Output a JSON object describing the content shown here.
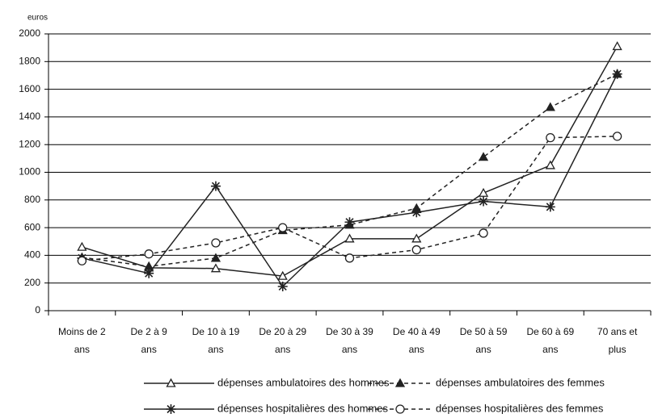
{
  "chart_data": {
    "type": "line",
    "y_label": "euros",
    "categories": [
      "Moins de 2\nans",
      "De 2 à 9\nans",
      "De 10 à 19\nans",
      "De 20 à 29\nans",
      "De 30 à 39\nans",
      "De 40 à 49\nans",
      "De 50 à 59\nans",
      "De 60 à 69\nans",
      "70 ans et\nplus"
    ],
    "series": [
      {
        "name": "dépenses ambulatoires des hommes",
        "color": "#222222",
        "dashed": false,
        "marker": "triangle-open",
        "values": [
          460,
          310,
          305,
          250,
          520,
          520,
          850,
          1050,
          1910
        ]
      },
      {
        "name": "dépenses ambulatoires des femmes",
        "color": "#222222",
        "dashed": true,
        "marker": "triangle-filled",
        "values": [
          385,
          320,
          380,
          580,
          620,
          740,
          1110,
          1470,
          1710
        ]
      },
      {
        "name": "dépenses hospitalières des hommes",
        "color": "#222222",
        "dashed": false,
        "marker": "star",
        "values": [
          380,
          270,
          900,
          175,
          640,
          710,
          790,
          750,
          1710
        ]
      },
      {
        "name": "dépenses hospitalières des femmes",
        "color": "#222222",
        "dashed": true,
        "marker": "circle-open",
        "values": [
          360,
          410,
          490,
          600,
          380,
          440,
          560,
          1250,
          1260
        ]
      }
    ],
    "ylim": [
      0,
      2000
    ],
    "yticks": [
      0,
      200,
      400,
      600,
      800,
      1000,
      1200,
      1400,
      1600,
      1800,
      2000
    ],
    "grid": true,
    "legend": "bottom"
  }
}
